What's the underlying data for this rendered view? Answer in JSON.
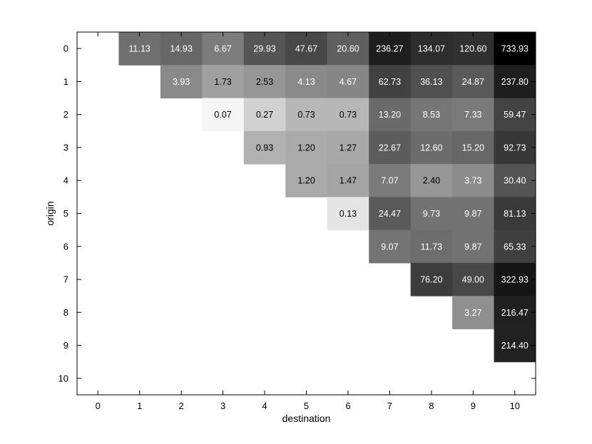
{
  "chart_data": {
    "type": "heatmap",
    "xlabel": "destination",
    "ylabel": "origin",
    "x_ticks": [
      "0",
      "1",
      "2",
      "3",
      "4",
      "5",
      "6",
      "7",
      "8",
      "9",
      "10"
    ],
    "y_ticks": [
      "0",
      "1",
      "2",
      "3",
      "4",
      "5",
      "6",
      "7",
      "8",
      "9",
      "10"
    ],
    "xlim": [
      -0.5,
      10.5
    ],
    "ylim": [
      -0.5,
      10.5
    ],
    "y_inverted": true,
    "colormap": "grayscale, log-scaled, darker = larger",
    "cells": [
      {
        "origin": 0,
        "destination": 1,
        "value": 11.13,
        "label": "11.13"
      },
      {
        "origin": 0,
        "destination": 2,
        "value": 14.93,
        "label": "14.93"
      },
      {
        "origin": 0,
        "destination": 3,
        "value": 6.67,
        "label": "6.67"
      },
      {
        "origin": 0,
        "destination": 4,
        "value": 29.93,
        "label": "29.93"
      },
      {
        "origin": 0,
        "destination": 5,
        "value": 47.67,
        "label": "47.67"
      },
      {
        "origin": 0,
        "destination": 6,
        "value": 20.6,
        "label": "20.60"
      },
      {
        "origin": 0,
        "destination": 7,
        "value": 236.27,
        "label": "236.27"
      },
      {
        "origin": 0,
        "destination": 8,
        "value": 134.07,
        "label": "134.07"
      },
      {
        "origin": 0,
        "destination": 9,
        "value": 120.6,
        "label": "120.60"
      },
      {
        "origin": 0,
        "destination": 10,
        "value": 733.93,
        "label": "733.93"
      },
      {
        "origin": 1,
        "destination": 2,
        "value": 3.93,
        "label": "3.93"
      },
      {
        "origin": 1,
        "destination": 3,
        "value": 1.73,
        "label": "1.73"
      },
      {
        "origin": 1,
        "destination": 4,
        "value": 2.53,
        "label": "2.53"
      },
      {
        "origin": 1,
        "destination": 5,
        "value": 4.13,
        "label": "4.13"
      },
      {
        "origin": 1,
        "destination": 6,
        "value": 4.67,
        "label": "4.67"
      },
      {
        "origin": 1,
        "destination": 7,
        "value": 62.73,
        "label": "62.73"
      },
      {
        "origin": 1,
        "destination": 8,
        "value": 36.13,
        "label": "36.13"
      },
      {
        "origin": 1,
        "destination": 9,
        "value": 24.87,
        "label": "24.87"
      },
      {
        "origin": 1,
        "destination": 10,
        "value": 237.8,
        "label": "237.80"
      },
      {
        "origin": 2,
        "destination": 3,
        "value": 0.07,
        "label": "0.07"
      },
      {
        "origin": 2,
        "destination": 4,
        "value": 0.27,
        "label": "0.27"
      },
      {
        "origin": 2,
        "destination": 5,
        "value": 0.73,
        "label": "0.73"
      },
      {
        "origin": 2,
        "destination": 6,
        "value": 0.73,
        "label": "0.73"
      },
      {
        "origin": 2,
        "destination": 7,
        "value": 13.2,
        "label": "13.20"
      },
      {
        "origin": 2,
        "destination": 8,
        "value": 8.53,
        "label": "8.53"
      },
      {
        "origin": 2,
        "destination": 9,
        "value": 7.33,
        "label": "7.33"
      },
      {
        "origin": 2,
        "destination": 10,
        "value": 59.47,
        "label": "59.47"
      },
      {
        "origin": 3,
        "destination": 4,
        "value": 0.93,
        "label": "0.93"
      },
      {
        "origin": 3,
        "destination": 5,
        "value": 1.2,
        "label": "1.20"
      },
      {
        "origin": 3,
        "destination": 6,
        "value": 1.27,
        "label": "1.27"
      },
      {
        "origin": 3,
        "destination": 7,
        "value": 22.67,
        "label": "22.67"
      },
      {
        "origin": 3,
        "destination": 8,
        "value": 12.6,
        "label": "12.60"
      },
      {
        "origin": 3,
        "destination": 9,
        "value": 15.2,
        "label": "15.20"
      },
      {
        "origin": 3,
        "destination": 10,
        "value": 92.73,
        "label": "92.73"
      },
      {
        "origin": 4,
        "destination": 5,
        "value": 1.2,
        "label": "1.20"
      },
      {
        "origin": 4,
        "destination": 6,
        "value": 1.47,
        "label": "1.47"
      },
      {
        "origin": 4,
        "destination": 7,
        "value": 7.07,
        "label": "7.07"
      },
      {
        "origin": 4,
        "destination": 8,
        "value": 2.4,
        "label": "2.40"
      },
      {
        "origin": 4,
        "destination": 9,
        "value": 3.73,
        "label": "3.73"
      },
      {
        "origin": 4,
        "destination": 10,
        "value": 30.4,
        "label": "30.40"
      },
      {
        "origin": 5,
        "destination": 6,
        "value": 0.13,
        "label": "0.13"
      },
      {
        "origin": 5,
        "destination": 7,
        "value": 24.47,
        "label": "24.47"
      },
      {
        "origin": 5,
        "destination": 8,
        "value": 9.73,
        "label": "9.73"
      },
      {
        "origin": 5,
        "destination": 9,
        "value": 9.87,
        "label": "9.87"
      },
      {
        "origin": 5,
        "destination": 10,
        "value": 81.13,
        "label": "81.13"
      },
      {
        "origin": 6,
        "destination": 7,
        "value": 9.07,
        "label": "9.07"
      },
      {
        "origin": 6,
        "destination": 8,
        "value": 11.73,
        "label": "11.73"
      },
      {
        "origin": 6,
        "destination": 9,
        "value": 9.87,
        "label": "9.87"
      },
      {
        "origin": 6,
        "destination": 10,
        "value": 65.33,
        "label": "65.33"
      },
      {
        "origin": 7,
        "destination": 8,
        "value": 76.2,
        "label": "76.20"
      },
      {
        "origin": 7,
        "destination": 9,
        "value": 49.0,
        "label": "49.00"
      },
      {
        "origin": 7,
        "destination": 10,
        "value": 322.93,
        "label": "322.93"
      },
      {
        "origin": 8,
        "destination": 9,
        "value": 3.27,
        "label": "3.27"
      },
      {
        "origin": 8,
        "destination": 10,
        "value": 216.47,
        "label": "216.47"
      },
      {
        "origin": 9,
        "destination": 10,
        "value": 214.4,
        "label": "214.40"
      }
    ]
  }
}
